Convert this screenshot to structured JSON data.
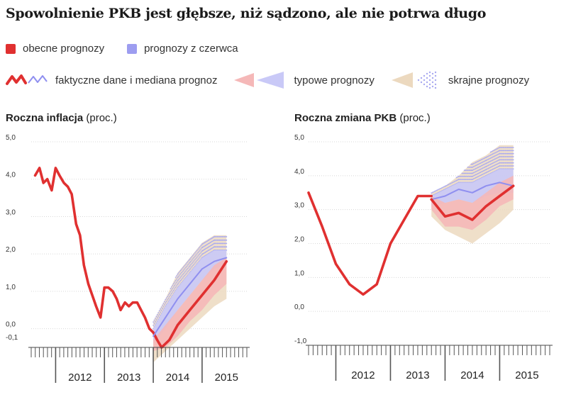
{
  "title": "Spowolnienie PKB jest głębsze, niż sądzono, ale nie potrwa długo",
  "legend": {
    "current": "obecne prognozy",
    "june": "prognozy z czerwca",
    "actual": "faktyczne dane i mediana prognoz",
    "typical": "typowe prognozy",
    "extreme": "skrajne prognozy"
  },
  "colors": {
    "red": "#e03030",
    "blue": "#8f8ff0",
    "pink_band": "#f5b8b8",
    "blue_band": "#c9c9f7",
    "beige_band": "#ecd9bf",
    "dots": "#a9a9f0"
  },
  "chart_data": [
    {
      "type": "line",
      "title_bold": "Roczna inflacja",
      "title_unit": "(proc.)",
      "x_labels": [
        "2012",
        "2013",
        "2014",
        "2015"
      ],
      "x_start": 2011.5,
      "months": 53,
      "yticks": [
        "5,0",
        "4,0",
        "3,0",
        "2,0",
        "1,0",
        "0,0",
        "-0,1"
      ],
      "ylim": [
        -0.5,
        5.0
      ],
      "series": [
        {
          "kind": "actual",
          "x": [
            2011.58,
            2011.67,
            2011.75,
            2011.83,
            2011.92,
            2012.0,
            2012.08,
            2012.17,
            2012.25,
            2012.33,
            2012.42,
            2012.5,
            2012.58,
            2012.67,
            2012.75,
            2012.83,
            2012.92,
            2013.0,
            2013.08,
            2013.17,
            2013.25,
            2013.33,
            2013.42,
            2013.5,
            2013.58,
            2013.67,
            2013.75,
            2013.83,
            2013.92,
            2014.0,
            2014.08,
            2014.17
          ],
          "y": [
            4.1,
            4.3,
            3.9,
            4.0,
            3.7,
            4.3,
            4.1,
            3.9,
            3.8,
            3.6,
            2.8,
            2.5,
            1.7,
            1.2,
            0.9,
            0.6,
            0.3,
            1.1,
            1.1,
            1.0,
            0.8,
            0.5,
            0.7,
            0.6,
            0.7,
            0.7,
            0.5,
            0.3,
            0.0,
            -0.1,
            -0.3,
            -0.5
          ]
        },
        {
          "kind": "june_median",
          "x": [
            2014.0,
            2014.25,
            2014.5,
            2014.75,
            2015.0,
            2015.25,
            2015.5
          ],
          "y": [
            -0.2,
            0.3,
            0.8,
            1.2,
            1.6,
            1.8,
            1.9
          ]
        },
        {
          "kind": "current_median",
          "x": [
            2014.17,
            2014.33,
            2014.5,
            2014.75,
            2015.0,
            2015.25,
            2015.5
          ],
          "y": [
            -0.5,
            -0.3,
            0.1,
            0.5,
            0.9,
            1.3,
            1.8
          ]
        }
      ],
      "bands": {
        "x": [
          2014.0,
          2014.25,
          2014.5,
          2014.75,
          2015.0,
          2015.25,
          2015.5
        ],
        "extreme_lo": [
          -0.9,
          -0.6,
          -0.3,
          0.0,
          0.3,
          0.6,
          0.8
        ],
        "extreme_hi": [
          0.2,
          0.8,
          1.5,
          1.9,
          2.3,
          2.5,
          2.5
        ],
        "june_lo": [
          -0.4,
          0.0,
          0.5,
          0.9,
          1.3,
          1.6,
          1.7
        ],
        "june_hi": [
          0.0,
          0.6,
          1.1,
          1.5,
          1.9,
          2.1,
          2.1
        ],
        "typical_lo": [
          -0.6,
          -0.5,
          -0.2,
          0.2,
          0.5,
          0.9,
          1.2
        ],
        "typical_hi": [
          -0.3,
          0.1,
          0.5,
          0.9,
          1.3,
          1.7,
          1.9
        ]
      }
    },
    {
      "type": "line",
      "title_bold": "Roczna zmiana PKB",
      "title_unit": "(proc.)",
      "x_labels": [
        "2012",
        "2013",
        "2014",
        "2015"
      ],
      "x_start": 2011.5,
      "months": 53,
      "yticks": [
        "5,0",
        "4,0",
        "3,0",
        "2,0",
        "1,0",
        "0,0",
        "-1,0"
      ],
      "ylim": [
        -1.0,
        5.0
      ],
      "series": [
        {
          "kind": "actual",
          "x": [
            2011.5,
            2011.75,
            2012.0,
            2012.25,
            2012.5,
            2012.75,
            2013.0,
            2013.25,
            2013.5,
            2013.75
          ],
          "y": [
            3.5,
            2.5,
            1.4,
            0.8,
            0.5,
            0.8,
            2.0,
            2.7,
            3.4,
            3.4
          ]
        },
        {
          "kind": "june_median",
          "x": [
            2013.75,
            2014.0,
            2014.25,
            2014.5,
            2014.75,
            2015.0,
            2015.25
          ],
          "y": [
            3.3,
            3.4,
            3.6,
            3.5,
            3.7,
            3.8,
            3.7
          ]
        },
        {
          "kind": "current_median",
          "x": [
            2013.75,
            2014.0,
            2014.25,
            2014.5,
            2014.75,
            2015.0,
            2015.25
          ],
          "y": [
            3.3,
            2.8,
            2.9,
            2.7,
            3.1,
            3.4,
            3.7
          ]
        }
      ],
      "bands": {
        "x": [
          2013.75,
          2014.0,
          2014.25,
          2014.5,
          2014.75,
          2015.0,
          2015.25
        ],
        "extreme_lo": [
          2.8,
          2.4,
          2.2,
          2.0,
          2.3,
          2.6,
          3.0
        ],
        "extreme_hi": [
          3.5,
          3.7,
          4.0,
          4.4,
          4.6,
          4.9,
          4.9
        ],
        "june_lo": [
          3.1,
          3.2,
          3.3,
          3.2,
          3.4,
          3.5,
          3.5
        ],
        "june_hi": [
          3.4,
          3.6,
          3.8,
          3.8,
          4.0,
          4.2,
          4.2
        ],
        "typical_lo": [
          3.0,
          2.5,
          2.5,
          2.4,
          2.7,
          3.1,
          3.3
        ],
        "typical_hi": [
          3.4,
          3.2,
          3.3,
          3.2,
          3.5,
          3.8,
          4.0
        ]
      }
    }
  ]
}
